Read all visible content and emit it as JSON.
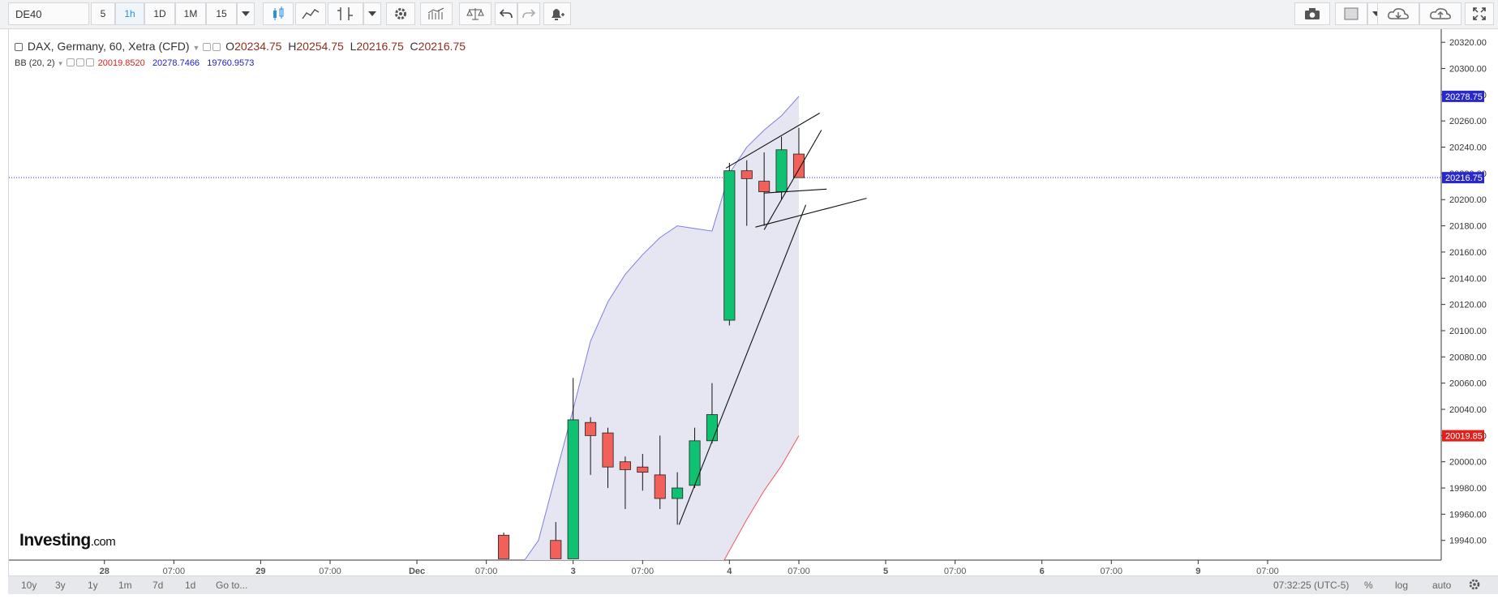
{
  "toolbar": {
    "symbol": "DE40",
    "intervals": [
      "5",
      "1h",
      "1D",
      "1M",
      "15"
    ],
    "active_interval": "1h"
  },
  "legend": {
    "instrument": "DAX, Germany, 60, Xetra (CFD)",
    "o_label": "O",
    "o_value": "20234.75",
    "h_label": "H",
    "h_value": "20254.75",
    "l_label": "L",
    "l_value": "20216.75",
    "c_label": "C",
    "c_value": "20216.75",
    "indicator": "BB (20, 2)",
    "bb_lower": "20019.8520",
    "bb_upper": "20278.7466",
    "bb_third": "19760.9573"
  },
  "logo": {
    "brand": "Investing",
    "domain": ".com"
  },
  "bottombar": {
    "ranges": [
      "10y",
      "3y",
      "1y",
      "1m",
      "7d",
      "1d"
    ],
    "goto": "Go to...",
    "time": "07:32:25 (UTC-5)",
    "percent": "%",
    "log": "log",
    "auto": "auto"
  },
  "colors": {
    "up": "#0fc272",
    "down": "#f2605a",
    "band_fill": "#e6e6f3",
    "band_upper": "#7d7de6",
    "band_lower": "#ef5a5a",
    "last_price_badge": "#2929c8",
    "lower_badge": "#e0201a"
  },
  "chart_data": {
    "type": "candlestick",
    "title": "DAX, Germany, 60, Xetra (CFD)",
    "y_axis_side": "right",
    "ylim": [
      19925,
      20330
    ],
    "y_ticks": [
      19940,
      19960,
      19980,
      20000,
      20020,
      20040,
      20060,
      20080,
      20100,
      20120,
      20140,
      20160,
      20180,
      20200,
      20220,
      20240,
      20260,
      20280,
      20300,
      20320
    ],
    "y_tick_labels": [
      "19940.00",
      "19960.00",
      "19980.00",
      "20000.00",
      "20020.00",
      "20040.00",
      "20060.00",
      "20080.00",
      "20100.00",
      "20120.00",
      "20140.00",
      "20160.00",
      "20180.00",
      "20200.00",
      "20220.00",
      "20240.00",
      "20260.00",
      "20280.00",
      "20300.00",
      "20320.00"
    ],
    "x_slot_range": [
      -20.5,
      62
    ],
    "x_ticks": [
      {
        "label": "28",
        "slot": -15
      },
      {
        "label": "07:00",
        "slot": -11
      },
      {
        "label": "29",
        "slot": -6
      },
      {
        "label": "07:00",
        "slot": -2
      },
      {
        "label": "Dec",
        "slot": 3
      },
      {
        "label": "07:00",
        "slot": 7
      },
      {
        "label": "3",
        "slot": 12
      },
      {
        "label": "07:00",
        "slot": 16
      },
      {
        "label": "4",
        "slot": 21
      },
      {
        "label": "07:00",
        "slot": 25
      },
      {
        "label": "5",
        "slot": 30
      },
      {
        "label": "07:00",
        "slot": 34
      },
      {
        "label": "6",
        "slot": 39
      },
      {
        "label": "07:00",
        "slot": 43
      },
      {
        "label": "9",
        "slot": 48
      },
      {
        "label": "07:00",
        "slot": 52
      }
    ],
    "candles": [
      {
        "slot": 8,
        "o": 19944,
        "h": 19946,
        "l": 19926,
        "c": 19926
      },
      {
        "slot": 11,
        "o": 19940,
        "h": 19954,
        "l": 19926,
        "c": 19926
      },
      {
        "slot": 12,
        "o": 19926,
        "h": 20064,
        "l": 19926,
        "c": 20032
      },
      {
        "slot": 13,
        "o": 20030,
        "h": 20034,
        "l": 19990,
        "c": 20020
      },
      {
        "slot": 14,
        "o": 20022,
        "h": 20026,
        "l": 19980,
        "c": 19996
      },
      {
        "slot": 15,
        "o": 20000,
        "h": 20004,
        "l": 19964,
        "c": 19994
      },
      {
        "slot": 16,
        "o": 19996,
        "h": 20006,
        "l": 19978,
        "c": 19992
      },
      {
        "slot": 17,
        "o": 19990,
        "h": 20020,
        "l": 19964,
        "c": 19972
      },
      {
        "slot": 18,
        "o": 19972,
        "h": 19992,
        "l": 19952,
        "c": 19980
      },
      {
        "slot": 19,
        "o": 19982,
        "h": 20026,
        "l": 19980,
        "c": 20016
      },
      {
        "slot": 20,
        "o": 20016,
        "h": 20060,
        "l": 20014,
        "c": 20036
      },
      {
        "slot": 21,
        "o": 20108,
        "h": 20228,
        "l": 20104,
        "c": 20222
      },
      {
        "slot": 22,
        "o": 20222,
        "h": 20230,
        "l": 20180,
        "c": 20216
      },
      {
        "slot": 23,
        "o": 20214,
        "h": 20236,
        "l": 20180,
        "c": 20206
      },
      {
        "slot": 24,
        "o": 20206,
        "h": 20248,
        "l": 20200,
        "c": 20238
      },
      {
        "slot": 25,
        "o": 20234.75,
        "h": 20254.75,
        "l": 20216.75,
        "c": 20216.75
      }
    ],
    "bollinger": {
      "upper": [
        [
          9.2,
          19925
        ],
        [
          10,
          19940
        ],
        [
          11,
          19990
        ],
        [
          12,
          20040
        ],
        [
          13,
          20092
        ],
        [
          14,
          20122
        ],
        [
          15,
          20143
        ],
        [
          16,
          20158
        ],
        [
          17,
          20171
        ],
        [
          18,
          20180
        ],
        [
          19,
          20178
        ],
        [
          20,
          20176
        ],
        [
          21,
          20220
        ],
        [
          22,
          20240
        ],
        [
          23,
          20253
        ],
        [
          24,
          20264
        ],
        [
          25,
          20278.75
        ]
      ],
      "lower": [
        [
          20.7,
          19925
        ],
        [
          22,
          19956
        ],
        [
          23,
          19978
        ],
        [
          24,
          19997
        ],
        [
          25,
          20019.85
        ]
      ]
    },
    "last_price": 20216.75,
    "price_badges": [
      {
        "value": 20278.75,
        "label": "20278.75",
        "color": "#2929c8"
      },
      {
        "value": 20216.75,
        "label": "20216.75",
        "color": "#2929c8"
      },
      {
        "value": 20019.85,
        "label": "20019.85",
        "color": "#e0201a"
      }
    ],
    "trendlines": [
      {
        "from": [
          20.8,
          20224
        ],
        "to": [
          26.2,
          20266
        ]
      },
      {
        "from": [
          22.5,
          20179
        ],
        "to": [
          28.9,
          20201
        ]
      },
      {
        "from": [
          23.0,
          20205
        ],
        "to": [
          26.6,
          20208
        ]
      },
      {
        "from": [
          23.0,
          20177
        ],
        "to": [
          26.3,
          20253
        ]
      },
      {
        "from": [
          18.1,
          19952
        ],
        "to": [
          25.4,
          20196
        ]
      }
    ]
  }
}
